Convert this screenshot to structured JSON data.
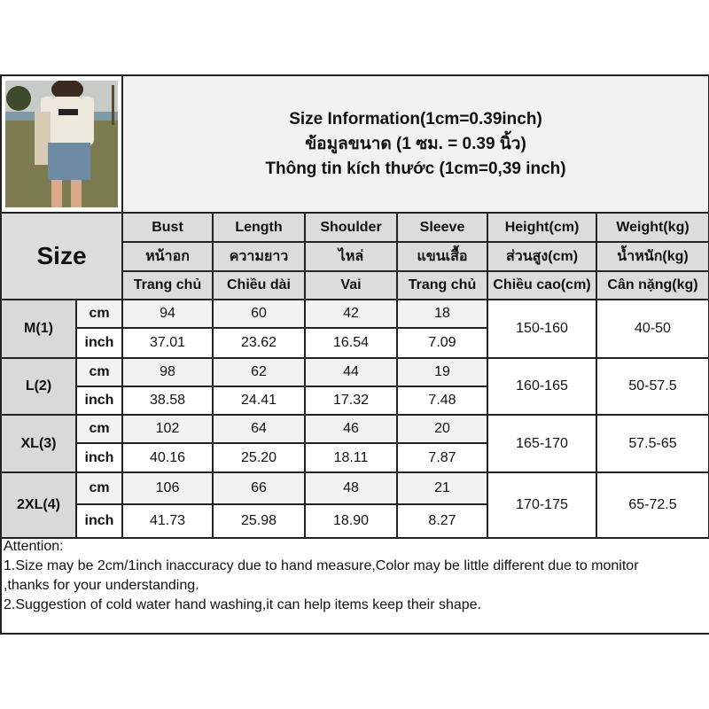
{
  "title_lines": [
    "Size Information(1cm=0.39inch)",
    "ข้อมูลขนาด (1 ซม. = 0.39 นิ้ว)",
    "Thông tin kích thước (1cm=0,39 inch)"
  ],
  "size_label": "Size",
  "columns": [
    {
      "en": "Bust",
      "th": "หน้าอก",
      "vi": "Trang chủ"
    },
    {
      "en": "Length",
      "th": "ความยาว",
      "vi": "Chiều dài"
    },
    {
      "en": "Shoulder",
      "th": "ไหล่",
      "vi": "Vai"
    },
    {
      "en": "Sleeve",
      "th": "แขนเสื้อ",
      "vi": "Trang chủ"
    },
    {
      "en": "Height(cm)",
      "th": "ส่วนสูง(cm)",
      "vi": "Chiều cao(cm)"
    },
    {
      "en": "Weight(kg)",
      "th": "น้ำหนัก(kg)",
      "vi": "Cân nặng(kg)"
    }
  ],
  "unit_cm": "cm",
  "unit_inch": "inch",
  "rows": [
    {
      "size": "M(1)",
      "cm": [
        "94",
        "60",
        "42",
        "18"
      ],
      "inch": [
        "37.01",
        "23.62",
        "16.54",
        "7.09"
      ],
      "height": "150-160",
      "weight": "40-50"
    },
    {
      "size": "L(2)",
      "cm": [
        "98",
        "62",
        "44",
        "19"
      ],
      "inch": [
        "38.58",
        "24.41",
        "17.32",
        "7.48"
      ],
      "height": "160-165",
      "weight": "50-57.5"
    },
    {
      "size": "XL(3)",
      "cm": [
        "102",
        "64",
        "46",
        "20"
      ],
      "inch": [
        "40.16",
        "25.20",
        "18.11",
        "7.87"
      ],
      "height": "165-170",
      "weight": "57.5-65"
    },
    {
      "size": "2XL(4)",
      "cm": [
        "106",
        "66",
        "48",
        "21"
      ],
      "inch": [
        "41.73",
        "25.98",
        "18.90",
        "8.27"
      ],
      "height": "170-175",
      "weight": "65-72.5"
    }
  ],
  "attention": [
    "Attention:",
    "1.Size may be 2cm/1inch inaccuracy due to hand measure,Color may be little different due to monitor",
    ",thanks for your understanding.",
    "2.Suggestion of cold water hand washing,it can help items keep their shape."
  ],
  "colors": {
    "header_bg": "#dcdcdc",
    "cm_row_bg": "#f2f2f2",
    "border": "#222222"
  }
}
